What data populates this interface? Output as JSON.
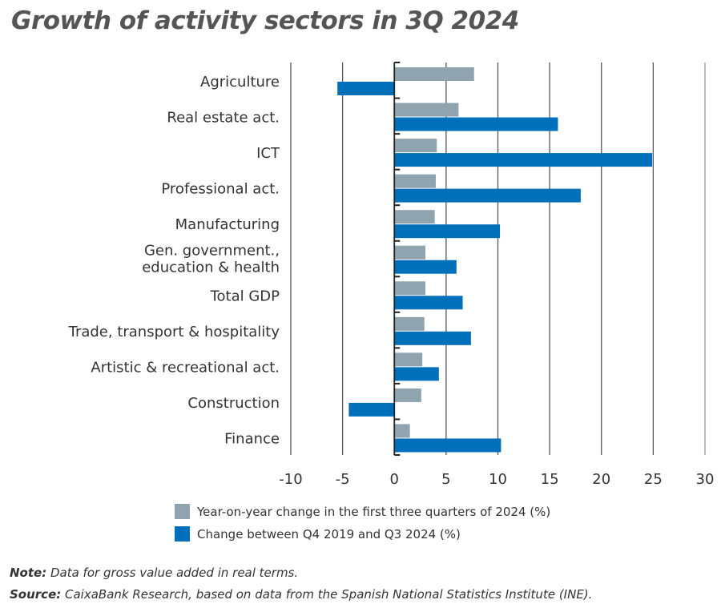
{
  "title": "Growth of activity sectors in 3Q 2024",
  "colors": {
    "series1": "#8fa4ae",
    "series2": "#0070ba"
  },
  "chart_data": {
    "type": "bar",
    "orientation": "horizontal",
    "categories": [
      "Agriculture",
      "Real estate act.",
      "ICT",
      "Professional act.",
      "Manufacturing",
      "Gen. government.,\neducation & health",
      "Total GDP",
      "Trade, transport & hospitality",
      "Artistic & recreational act.",
      "Construction",
      "Finance"
    ],
    "series": [
      {
        "name": "Year-on-year change in the first three quarters of 2024 (%)",
        "values": [
          7.7,
          6.2,
          4.1,
          4.0,
          3.9,
          3.0,
          3.0,
          2.9,
          2.7,
          2.6,
          1.5
        ]
      },
      {
        "name": "Change between Q4 2019 and Q3 2024 (%)",
        "values": [
          -5.5,
          15.8,
          24.9,
          18.0,
          10.2,
          6.0,
          6.6,
          7.4,
          4.3,
          -4.4,
          10.3
        ]
      }
    ],
    "xlim": [
      -10,
      30
    ],
    "xticks": [
      -10,
      -5,
      0,
      5,
      10,
      15,
      20,
      25,
      30
    ],
    "grid": true,
    "legend": "bottom"
  },
  "note": {
    "label": "Note:",
    "text": " Data for gross value added in real terms."
  },
  "source": {
    "label": "Source:",
    "text": " CaixaBank Research, based on data from the Spanish National Statistics Institute (INE)."
  }
}
